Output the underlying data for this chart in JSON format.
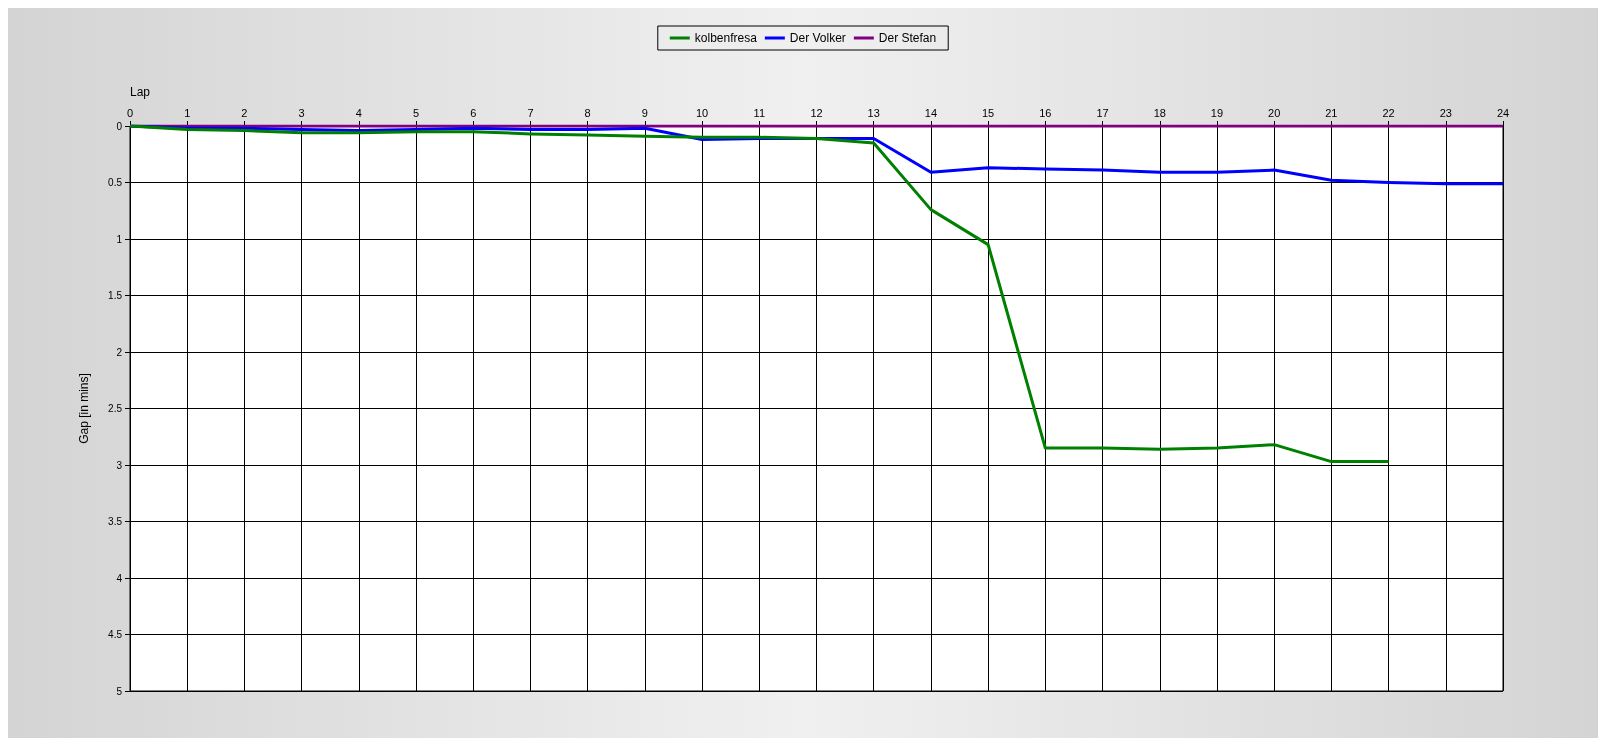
{
  "chart_data": {
    "type": "line",
    "xlabel": "Lap",
    "ylabel": "Gap [in mins]",
    "xlim": [
      0,
      24
    ],
    "xticks": [
      0,
      1,
      2,
      3,
      4,
      5,
      6,
      7,
      8,
      9,
      10,
      11,
      12,
      13,
      14,
      15,
      16,
      17,
      18,
      19,
      20,
      21,
      22,
      23,
      24
    ],
    "ylim": [
      5,
      0
    ],
    "yticks": [
      0,
      0.5,
      1,
      1.5,
      2,
      2.5,
      3,
      3.5,
      4,
      4.5,
      5
    ],
    "grid": true,
    "legend": "top",
    "marker": "none",
    "line_style": "solid",
    "series": [
      {
        "name": "kolbenfresa",
        "color": "#008000",
        "x": [
          0,
          1,
          2,
          3,
          4,
          5,
          6,
          7,
          8,
          9,
          10,
          11,
          12,
          13,
          14,
          15,
          16,
          17,
          18,
          19,
          20,
          21,
          22
        ],
        "values": [
          0,
          0.03,
          0.04,
          0.06,
          0.06,
          0.05,
          0.05,
          0.07,
          0.08,
          0.09,
          0.1,
          0.1,
          0.11,
          0.15,
          0.74,
          1.05,
          2.85,
          2.85,
          2.86,
          2.85,
          2.82,
          2.97,
          2.97
        ]
      },
      {
        "name": "Der Volker",
        "color": "#0000ff",
        "x": [
          0,
          1,
          2,
          3,
          4,
          5,
          6,
          7,
          8,
          9,
          10,
          11,
          12,
          13,
          14,
          15,
          16,
          17,
          18,
          19,
          20,
          21,
          22,
          23,
          24
        ],
        "values": [
          0,
          0.02,
          0.02,
          0.03,
          0.04,
          0.03,
          0.02,
          0.03,
          0.03,
          0.02,
          0.12,
          0.11,
          0.11,
          0.11,
          0.41,
          0.37,
          0.38,
          0.39,
          0.41,
          0.41,
          0.39,
          0.48,
          0.5,
          0.51,
          0.51
        ]
      },
      {
        "name": "Der Stefan",
        "color": "#800080",
        "x": [
          0,
          1,
          2,
          3,
          4,
          5,
          6,
          7,
          8,
          9,
          10,
          11,
          12,
          13,
          14,
          15,
          16,
          17,
          18,
          19,
          20,
          21,
          22,
          23,
          24
        ],
        "values": [
          0,
          0,
          0,
          0,
          0,
          0,
          0,
          0,
          0,
          0,
          0,
          0,
          0,
          0,
          0,
          0,
          0,
          0,
          0,
          0,
          0,
          0,
          0,
          0,
          0
        ]
      }
    ]
  }
}
